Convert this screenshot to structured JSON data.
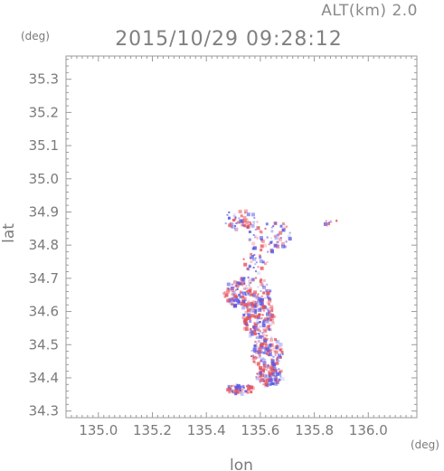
{
  "chart_data": {
    "type": "heatmap",
    "title": "2015/10/29 09:28:12",
    "altitude_label": "ALT(km) 2.0",
    "xlabel": "lon",
    "ylabel": "lat",
    "x_unit": "(deg)",
    "y_unit": "(deg)",
    "xlim": [
      134.88,
      136.18
    ],
    "ylim": [
      34.28,
      35.37
    ],
    "x_ticks": [
      "135.0",
      "135.2",
      "135.4",
      "135.6",
      "135.8",
      "136.0"
    ],
    "y_ticks": [
      "34.3",
      "34.4",
      "34.5",
      "34.6",
      "34.7",
      "34.8",
      "34.9",
      "35.0",
      "35.1",
      "35.2",
      "35.3"
    ],
    "grid": false,
    "colors": {
      "positive": "#e8505a",
      "negative": "#5a5ae6",
      "frame": "#9a9a9a",
      "text": "#7a7a7a"
    },
    "clusters": [
      {
        "lon": 135.52,
        "lat": 34.88,
        "rlon": 0.06,
        "rlat": 0.03,
        "n": 55
      },
      {
        "lon": 135.63,
        "lat": 34.83,
        "rlon": 0.09,
        "rlat": 0.05,
        "n": 70
      },
      {
        "lon": 135.58,
        "lat": 34.75,
        "rlon": 0.05,
        "rlat": 0.03,
        "n": 30
      },
      {
        "lon": 135.55,
        "lat": 34.66,
        "rlon": 0.09,
        "rlat": 0.05,
        "n": 180
      },
      {
        "lon": 135.59,
        "lat": 34.58,
        "rlon": 0.06,
        "rlat": 0.06,
        "n": 170
      },
      {
        "lon": 135.62,
        "lat": 34.48,
        "rlon": 0.06,
        "rlat": 0.05,
        "n": 150
      },
      {
        "lon": 135.63,
        "lat": 34.41,
        "rlon": 0.05,
        "rlat": 0.03,
        "n": 100
      },
      {
        "lon": 135.52,
        "lat": 34.37,
        "rlon": 0.05,
        "rlat": 0.015,
        "n": 60
      },
      {
        "lon": 135.86,
        "lat": 34.87,
        "rlon": 0.03,
        "rlat": 0.015,
        "n": 10
      }
    ]
  }
}
